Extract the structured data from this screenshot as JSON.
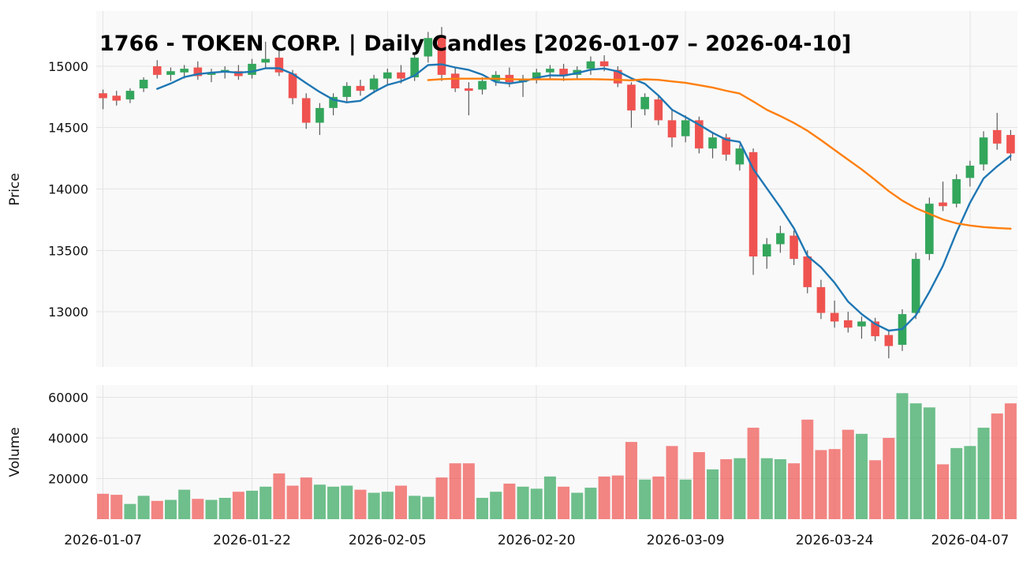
{
  "chart_data": {
    "type": "candlestick",
    "title": "1766 - TOKEN CORP. | Daily Candles [2026-01-07 – 2026-04-10]",
    "ylabel_price": "Price",
    "ylabel_volume": "Volume",
    "price_ticks": [
      13000,
      13500,
      14000,
      14500,
      15000
    ],
    "volume_ticks": [
      20000,
      40000,
      60000
    ],
    "price_range": [
      12550,
      15450
    ],
    "volume_range": [
      0,
      66000
    ],
    "x_tick_indices": [
      0,
      11,
      21,
      32,
      43,
      54,
      64
    ],
    "x_tick_labels": [
      "2026-01-07",
      "2026-01-22",
      "2026-02-05",
      "2026-02-20",
      "2026-03-09",
      "2026-03-24",
      "2026-04-07"
    ],
    "ma_short_window": 5,
    "ma_long_window": 25,
    "legend_position": "none",
    "grid": true,
    "colors": {
      "up": "#33a65c",
      "down": "#ef5350",
      "wick": "#5a5a5a",
      "ma_short": "#1f77b4",
      "ma_long": "#ff7f0e",
      "grid": "#e4e4e4",
      "panel_bg": "#f9f9f9",
      "text": "#111111"
    },
    "columns": [
      "date",
      "open",
      "high",
      "low",
      "close",
      "volume"
    ],
    "candles": [
      [
        "2026-01-07",
        14780,
        14810,
        14650,
        14740,
        12500
      ],
      [
        "2026-01-08",
        14760,
        14800,
        14680,
        14720,
        12000
      ],
      [
        "2026-01-09",
        14730,
        14820,
        14700,
        14800,
        7500
      ],
      [
        "2026-01-12",
        14820,
        14910,
        14790,
        14890,
        11500
      ],
      [
        "2026-01-13",
        15000,
        15050,
        14900,
        14930,
        9000
      ],
      [
        "2026-01-14",
        14930,
        14990,
        14880,
        14960,
        9500
      ],
      [
        "2026-01-15",
        14950,
        15010,
        14900,
        14980,
        14500
      ],
      [
        "2026-01-16",
        14990,
        15040,
        14890,
        14920,
        10000
      ],
      [
        "2026-01-19",
        14930,
        14980,
        14870,
        14950,
        9500
      ],
      [
        "2026-01-20",
        14950,
        15000,
        14900,
        14970,
        10500
      ],
      [
        "2026-01-21",
        14960,
        15010,
        14890,
        14920,
        13500
      ],
      [
        "2026-01-22",
        14930,
        15060,
        14900,
        15020,
        14000
      ],
      [
        "2026-01-23",
        15030,
        15200,
        14980,
        15060,
        16000
      ],
      [
        "2026-01-26",
        15070,
        15150,
        14920,
        14950,
        22500
      ],
      [
        "2026-01-27",
        14940,
        14970,
        14690,
        14740,
        16500
      ],
      [
        "2026-01-28",
        14740,
        14780,
        14490,
        14540,
        20500
      ],
      [
        "2026-01-29",
        14540,
        14700,
        14440,
        14660,
        17000
      ],
      [
        "2026-01-30",
        14660,
        14780,
        14600,
        14750,
        16000
      ],
      [
        "2026-02-02",
        14750,
        14870,
        14700,
        14840,
        16500
      ],
      [
        "2026-02-03",
        14840,
        14890,
        14760,
        14800,
        14500
      ],
      [
        "2026-02-04",
        14810,
        14930,
        14780,
        14900,
        13000
      ],
      [
        "2026-02-05",
        14900,
        14980,
        14850,
        14950,
        13500
      ],
      [
        "2026-02-06",
        14950,
        15010,
        14860,
        14900,
        16500
      ],
      [
        "2026-02-09",
        14910,
        15100,
        14880,
        15070,
        11500
      ],
      [
        "2026-02-10",
        15080,
        15280,
        15030,
        15230,
        11000
      ],
      [
        "2026-02-11",
        15240,
        15320,
        14880,
        14930,
        20500
      ],
      [
        "2026-02-12",
        14940,
        14990,
        14790,
        14820,
        27500
      ],
      [
        "2026-02-13",
        14820,
        14870,
        14600,
        14800,
        27500
      ],
      [
        "2026-02-16",
        14810,
        14910,
        14770,
        14880,
        10500
      ],
      [
        "2026-02-17",
        14880,
        14960,
        14840,
        14930,
        13500
      ],
      [
        "2026-02-18",
        14930,
        14990,
        14830,
        14870,
        17500
      ],
      [
        "2026-02-19",
        14870,
        14930,
        14750,
        14900,
        16000
      ],
      [
        "2026-02-20",
        14900,
        14980,
        14860,
        14950,
        15000
      ],
      [
        "2026-02-23",
        14950,
        15010,
        14900,
        14980,
        21000
      ],
      [
        "2026-02-24",
        14980,
        15020,
        14880,
        14920,
        16000
      ],
      [
        "2026-02-25",
        14930,
        15000,
        14890,
        14970,
        13000
      ],
      [
        "2026-02-26",
        14980,
        15080,
        14930,
        15040,
        15500
      ],
      [
        "2026-02-27",
        15040,
        15090,
        14960,
        15000,
        21000
      ],
      [
        "2026-03-02",
        14970,
        15000,
        14830,
        14860,
        21500
      ],
      [
        "2026-03-03",
        14850,
        14870,
        14500,
        14640,
        38000
      ],
      [
        "2026-03-04",
        14650,
        14780,
        14600,
        14750,
        19500
      ],
      [
        "2026-03-05",
        14730,
        14760,
        14520,
        14560,
        21000
      ],
      [
        "2026-03-06",
        14560,
        14640,
        14340,
        14420,
        36000
      ],
      [
        "2026-03-09",
        14430,
        14600,
        14380,
        14560,
        19500
      ],
      [
        "2026-03-10",
        14560,
        14590,
        14290,
        14330,
        33000
      ],
      [
        "2026-03-11",
        14330,
        14460,
        14250,
        14420,
        24500
      ],
      [
        "2026-03-12",
        14420,
        14450,
        14230,
        14280,
        29500
      ],
      [
        "2026-03-13",
        14200,
        14360,
        14150,
        14330,
        30000
      ],
      [
        "2026-03-16",
        14300,
        14330,
        13300,
        13450,
        45000
      ],
      [
        "2026-03-17",
        13450,
        13600,
        13350,
        13550,
        30000
      ],
      [
        "2026-03-18",
        13550,
        13700,
        13480,
        13640,
        29500
      ],
      [
        "2026-03-19",
        13620,
        13660,
        13380,
        13430,
        27500
      ],
      [
        "2026-03-20",
        13450,
        13500,
        13150,
        13200,
        49000
      ],
      [
        "2026-03-23",
        13200,
        13260,
        12940,
        12990,
        34000
      ],
      [
        "2026-03-24",
        12990,
        13090,
        12870,
        12920,
        34500
      ],
      [
        "2026-03-25",
        12930,
        13000,
        12830,
        12870,
        44000
      ],
      [
        "2026-03-26",
        12880,
        12960,
        12780,
        12920,
        42000
      ],
      [
        "2026-03-27",
        12920,
        12950,
        12760,
        12800,
        29000
      ],
      [
        "2026-03-30",
        12810,
        12850,
        12620,
        12720,
        40000
      ],
      [
        "2026-03-31",
        12730,
        13020,
        12680,
        12980,
        62000
      ],
      [
        "2026-04-01",
        12990,
        13480,
        12940,
        13430,
        57000
      ],
      [
        "2026-04-02",
        13470,
        13930,
        13420,
        13880,
        55000
      ],
      [
        "2026-04-03",
        13890,
        14060,
        13820,
        13860,
        27000
      ],
      [
        "2026-04-06",
        13880,
        14120,
        13850,
        14080,
        35000
      ],
      [
        "2026-04-07",
        14090,
        14230,
        14020,
        14190,
        36000
      ],
      [
        "2026-04-08",
        14200,
        14470,
        14150,
        14420,
        45000
      ],
      [
        "2026-04-09",
        14480,
        14620,
        14320,
        14370,
        52000
      ],
      [
        "2026-04-10",
        14440,
        14480,
        14230,
        14290,
        57000
      ]
    ]
  }
}
